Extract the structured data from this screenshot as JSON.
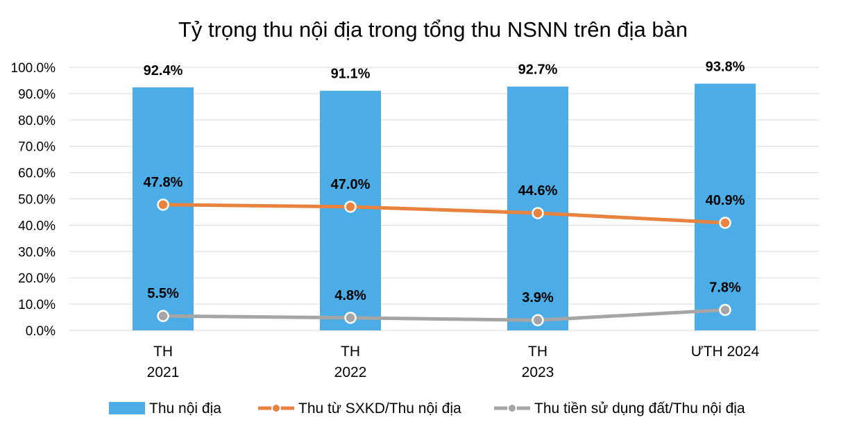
{
  "chart_data": {
    "type": "bar",
    "title": "Tỷ trọng thu nội địa trong tổng thu NSNN trên địa bàn",
    "categories": [
      [
        "TH",
        "2021"
      ],
      [
        "TH",
        "2022"
      ],
      [
        "TH",
        "2023"
      ],
      [
        "ƯTH 2024"
      ]
    ],
    "ylim": [
      0,
      100
    ],
    "yticks": [
      "0.0%",
      "10.0%",
      "20.0%",
      "30.0%",
      "40.0%",
      "50.0%",
      "60.0%",
      "70.0%",
      "80.0%",
      "90.0%",
      "100.0%"
    ],
    "grid": true,
    "legend_position": "bottom",
    "series": [
      {
        "name": "Thu nội địa",
        "kind": "bar",
        "color": "#4BACE6",
        "values": [
          92.4,
          91.1,
          92.7,
          93.8
        ],
        "labels": [
          "92.4%",
          "91.1%",
          "92.7%",
          "93.8%"
        ]
      },
      {
        "name": "Thu từ SXKD/Thu nội địa",
        "kind": "line",
        "color": "#E8823F",
        "values": [
          47.8,
          47.0,
          44.6,
          40.9
        ],
        "labels": [
          "47.8%",
          "47.0%",
          "44.6%",
          "40.9%"
        ]
      },
      {
        "name": "Thu tiền sử dụng đất/Thu nội địa",
        "kind": "line",
        "color": "#A5A5A5",
        "values": [
          5.5,
          4.8,
          3.9,
          7.8
        ],
        "labels": [
          "5.5%",
          "4.8%",
          "3.9%",
          "7.8%"
        ]
      }
    ]
  }
}
